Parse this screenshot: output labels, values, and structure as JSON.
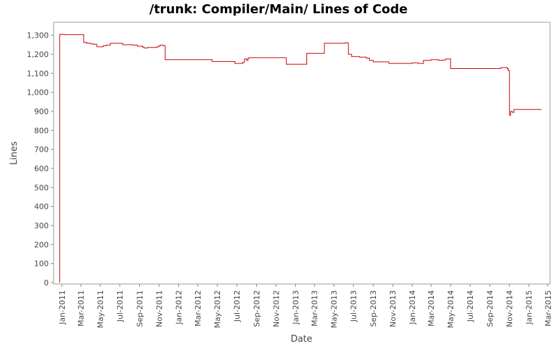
{
  "chart_data": {
    "type": "line",
    "title": "/trunk: Compiler/Main/ Lines of Code",
    "xlabel": "Date",
    "ylabel": "Lines",
    "ylim": [
      0,
      1350
    ],
    "xlim": [
      "2010-12-06",
      "2015-03-08"
    ],
    "grid": false,
    "legend": "none",
    "line_color": "#cc0000",
    "y_ticks": [
      0,
      100,
      200,
      300,
      400,
      500,
      600,
      700,
      800,
      900,
      1000,
      1100,
      1200,
      1300
    ],
    "y_tick_labels": [
      "0",
      "100",
      "200",
      "300",
      "400",
      "500",
      "600",
      "700",
      "800",
      "900",
      "1,000",
      "1,100",
      "1,200",
      "1,300"
    ],
    "x_ticks": [
      "2011-01-01",
      "2011-03-01",
      "2011-05-01",
      "2011-07-01",
      "2011-09-01",
      "2011-11-01",
      "2012-01-01",
      "2012-03-01",
      "2012-05-01",
      "2012-07-01",
      "2012-09-01",
      "2012-11-01",
      "2013-01-01",
      "2013-03-01",
      "2013-05-01",
      "2013-07-01",
      "2013-09-01",
      "2013-11-01",
      "2014-01-01",
      "2014-03-01",
      "2014-05-01",
      "2014-07-01",
      "2014-09-01",
      "2014-11-01",
      "2015-01-01",
      "2015-03-01"
    ],
    "x_tick_labels": [
      "Jan-2011",
      "Mar-2011",
      "May-2011",
      "Jul-2011",
      "Sep-2011",
      "Nov-2011",
      "Jan-2012",
      "Mar-2012",
      "May-2012",
      "Jul-2012",
      "Sep-2012",
      "Nov-2012",
      "Jan-2013",
      "Mar-2013",
      "May-2013",
      "Jul-2013",
      "Sep-2013",
      "Nov-2013",
      "Jan-2014",
      "Mar-2014",
      "May-2014",
      "Jul-2014",
      "Sep-2014",
      "Nov-2014",
      "Jan-2015",
      "Mar-2015"
    ],
    "series": [
      {
        "step": true,
        "x": [
          "2010-12-25",
          "2010-12-25",
          "2010-12-26",
          "2010-12-29",
          "2011-01-08",
          "2011-02-28",
          "2011-03-10",
          "2011-03-20",
          "2011-04-01",
          "2011-04-10",
          "2011-04-20",
          "2011-05-10",
          "2011-05-20",
          "2011-06-01",
          "2011-07-05",
          "2011-07-10",
          "2011-08-10",
          "2011-08-25",
          "2011-09-10",
          "2011-09-15",
          "2011-09-25",
          "2011-10-20",
          "2011-10-25",
          "2011-11-01",
          "2011-11-05",
          "2011-11-15",
          "2011-11-20",
          "2012-04-15",
          "2012-06-25",
          "2012-07-20",
          "2012-07-25",
          "2012-08-01",
          "2012-08-05",
          "2012-08-10",
          "2012-08-15",
          "2012-12-03",
          "2013-02-05",
          "2013-04-01",
          "2013-06-05",
          "2013-06-15",
          "2013-06-25",
          "2013-07-20",
          "2013-08-10",
          "2013-08-20",
          "2013-09-01",
          "2013-10-10",
          "2013-10-20",
          "2014-01-01",
          "2014-01-20",
          "2014-02-05",
          "2014-03-01",
          "2014-03-25",
          "2014-04-05",
          "2014-04-15",
          "2014-05-01",
          "2014-09-20",
          "2014-10-05",
          "2014-10-20",
          "2014-10-25",
          "2014-10-28",
          "2014-11-01",
          "2014-11-05",
          "2014-11-10",
          "2014-11-15",
          "2015-02-09"
        ],
        "values": [
          0,
          1300,
          1305,
          1305,
          1303,
          1303,
          1262,
          1258,
          1255,
          1253,
          1240,
          1245,
          1248,
          1258,
          1258,
          1250,
          1248,
          1243,
          1238,
          1233,
          1236,
          1236,
          1240,
          1245,
          1248,
          1245,
          1172,
          1162,
          1152,
          1158,
          1175,
          1168,
          1180,
          1182,
          1182,
          1148,
          1205,
          1258,
          1260,
          1200,
          1188,
          1185,
          1180,
          1168,
          1160,
          1160,
          1152,
          1155,
          1152,
          1168,
          1172,
          1168,
          1170,
          1175,
          1125,
          1125,
          1130,
          1130,
          1125,
          1115,
          880,
          900,
          895,
          910,
          910
        ]
      }
    ]
  }
}
